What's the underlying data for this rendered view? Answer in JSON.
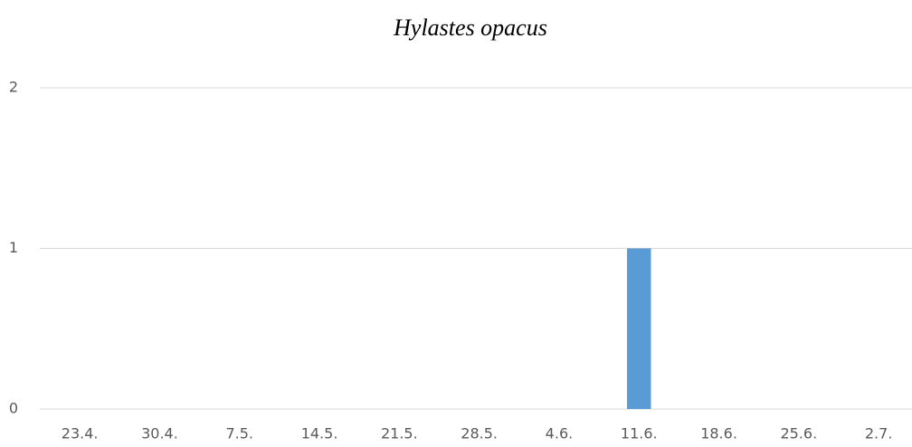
{
  "chart_data": {
    "type": "bar",
    "title": "Hylastes opacus",
    "categories": [
      "23.4.",
      "30.4.",
      "7.5.",
      "14.5.",
      "21.5.",
      "28.5.",
      "4.6.",
      "11.6.",
      "18.6.",
      "25.6.",
      "2.7."
    ],
    "values": [
      0,
      0,
      0,
      0,
      0,
      0,
      0,
      1,
      0,
      0,
      0
    ],
    "color": "#5b9bd5",
    "ylim": [
      0,
      2
    ],
    "yticks": [
      0,
      1,
      2
    ],
    "grid": true
  }
}
